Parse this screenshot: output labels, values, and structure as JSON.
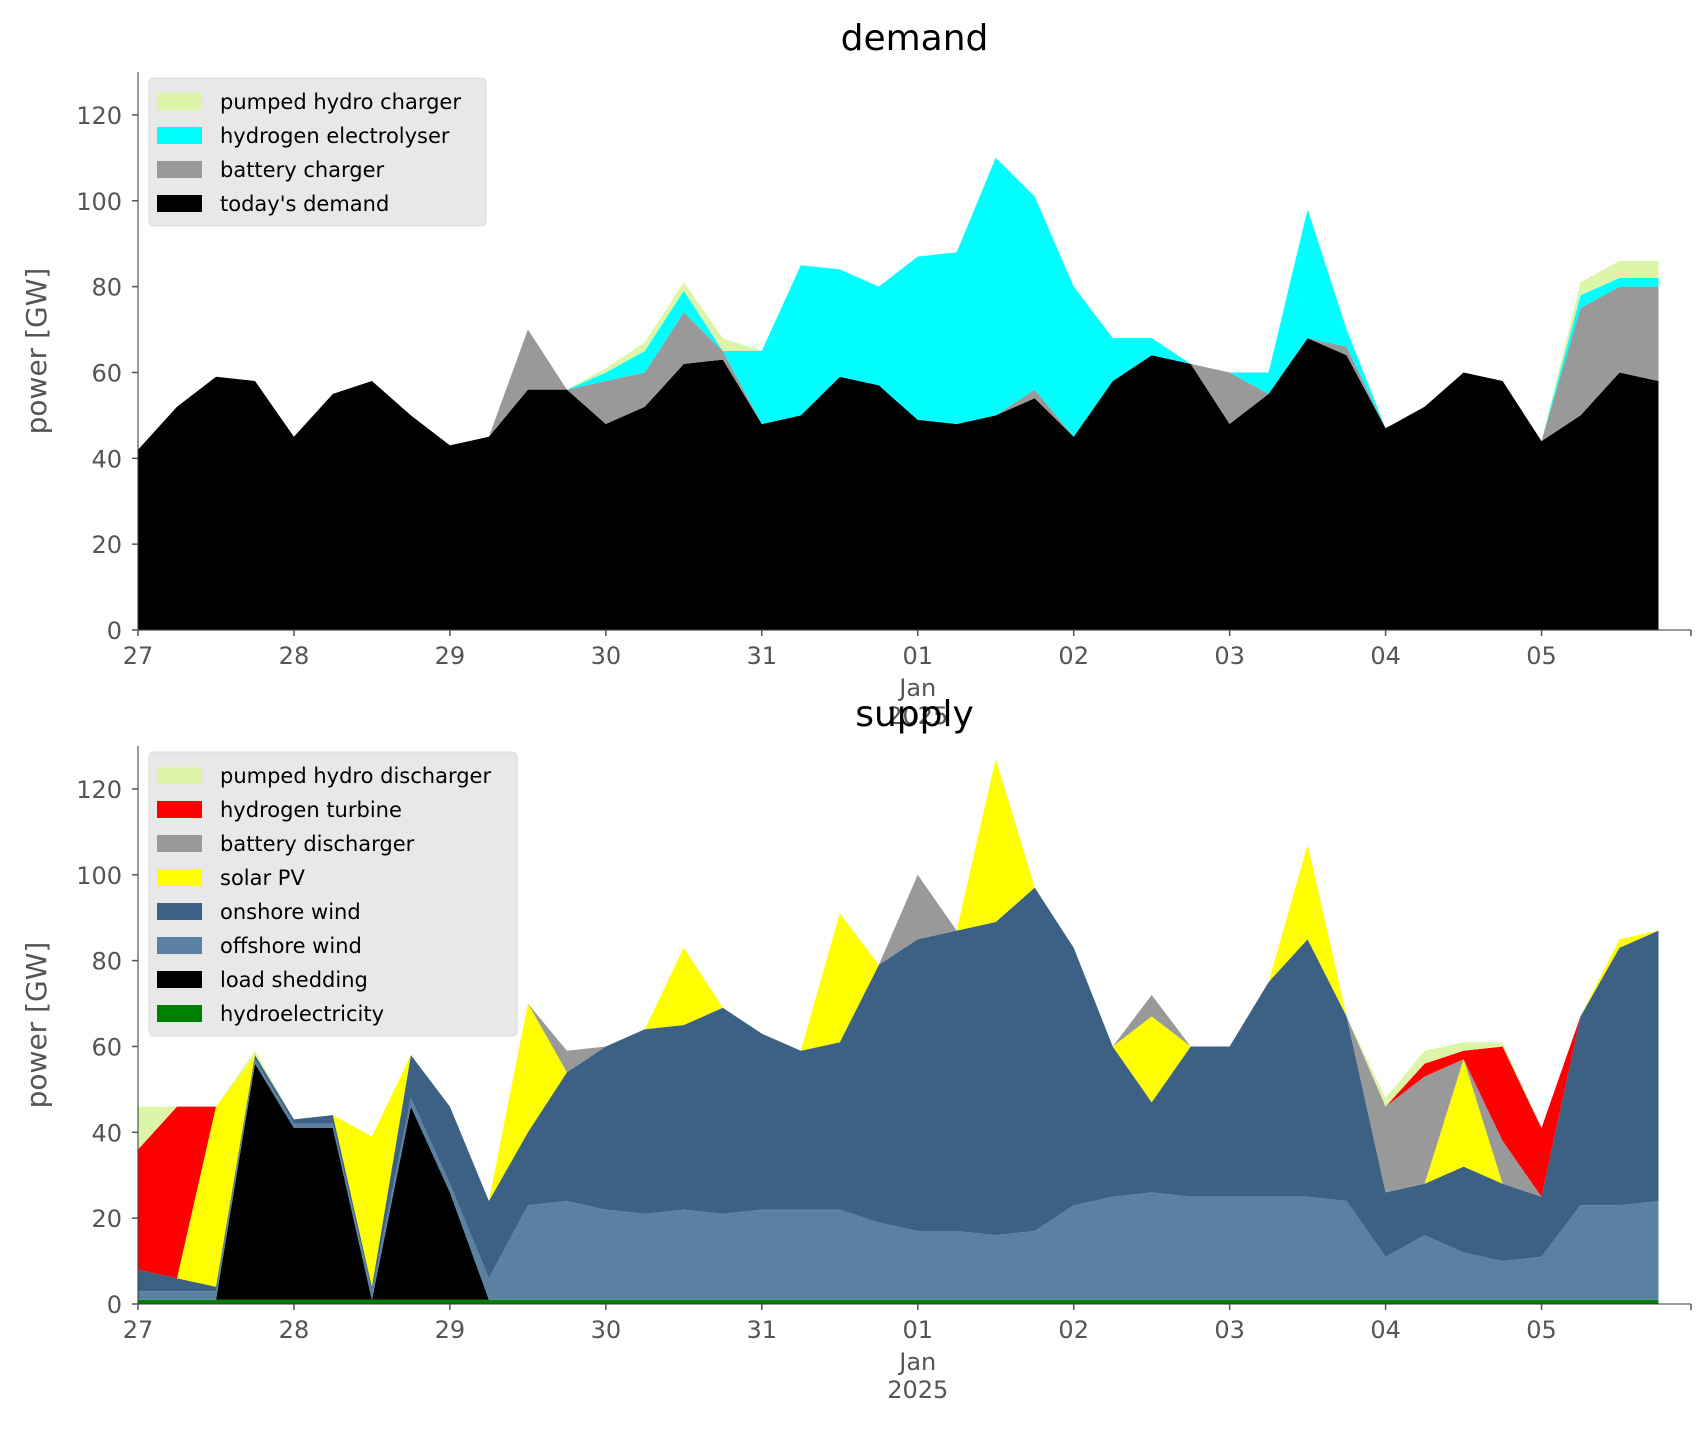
{
  "chart_data": [
    {
      "type": "area",
      "stacked": true,
      "title": "demand",
      "xlabel": "",
      "ylabel": "power [GW]",
      "ylim": [
        0,
        130
      ],
      "xlim": [
        "2024-12-27T00:00",
        "2025-01-05T23:00"
      ],
      "yticks": [
        "0",
        "20",
        "40",
        "60",
        "80",
        "100",
        "120"
      ],
      "xticks": [
        {
          "date": "2024-12-27",
          "label": "27"
        },
        {
          "date": "2024-12-28",
          "label": "28"
        },
        {
          "date": "2024-12-29",
          "label": "29"
        },
        {
          "date": "2024-12-30",
          "label": "30"
        },
        {
          "date": "2024-12-31",
          "label": "31"
        },
        {
          "date": "2025-01-01",
          "label": "01",
          "sublabel": "Jan",
          "sublabel2": "2025"
        },
        {
          "date": "2025-01-02",
          "label": "02"
        },
        {
          "date": "2025-01-03",
          "label": "03"
        },
        {
          "date": "2025-01-04",
          "label": "04"
        },
        {
          "date": "2025-01-05",
          "label": "05"
        }
      ],
      "grid": false,
      "legend_position": "upper-left",
      "x": [
        "2024-12-27T00:00",
        "2024-12-27T06:00",
        "2024-12-27T12:00",
        "2024-12-27T18:00",
        "2024-12-28T00:00",
        "2024-12-28T06:00",
        "2024-12-28T12:00",
        "2024-12-28T18:00",
        "2024-12-29T00:00",
        "2024-12-29T06:00",
        "2024-12-29T12:00",
        "2024-12-29T18:00",
        "2024-12-30T00:00",
        "2024-12-30T06:00",
        "2024-12-30T12:00",
        "2024-12-30T18:00",
        "2024-12-31T00:00",
        "2024-12-31T06:00",
        "2024-12-31T12:00",
        "2024-12-31T18:00",
        "2025-01-01T00:00",
        "2025-01-01T06:00",
        "2025-01-01T12:00",
        "2025-01-01T18:00",
        "2025-01-02T00:00",
        "2025-01-02T06:00",
        "2025-01-02T12:00",
        "2025-01-02T18:00",
        "2025-01-03T00:00",
        "2025-01-03T06:00",
        "2025-01-03T12:00",
        "2025-01-03T18:00",
        "2025-01-04T00:00",
        "2025-01-04T06:00",
        "2025-01-04T12:00",
        "2025-01-04T18:00",
        "2025-01-05T00:00",
        "2025-01-05T06:00",
        "2025-01-05T12:00",
        "2025-01-05T18:00"
      ],
      "series": [
        {
          "name": "today's demand",
          "color": "#000000",
          "values": [
            42,
            52,
            59,
            58,
            45,
            55,
            58,
            50,
            43,
            45,
            56,
            56,
            48,
            52,
            62,
            63,
            48,
            50,
            59,
            57,
            49,
            48,
            50,
            54,
            45,
            58,
            64,
            62,
            48,
            55,
            68,
            64,
            47,
            52,
            60,
            58,
            44,
            50,
            60,
            58
          ]
        },
        {
          "name": "battery charger",
          "color": "#999999",
          "values": [
            0,
            0,
            0,
            0,
            0,
            0,
            0,
            0,
            0,
            0,
            14,
            0,
            10,
            8,
            12,
            2,
            0,
            0,
            0,
            0,
            0,
            0,
            0,
            2,
            0,
            0,
            0,
            0,
            12,
            0,
            0,
            2,
            0,
            0,
            0,
            0,
            0,
            25,
            20,
            22
          ]
        },
        {
          "name": "hydrogen electrolyser",
          "color": "#00ffff",
          "values": [
            0,
            0,
            0,
            0,
            0,
            0,
            0,
            0,
            0,
            0,
            0,
            0,
            2,
            5,
            5,
            0,
            17,
            35,
            25,
            23,
            38,
            40,
            60,
            45,
            35,
            10,
            4,
            0,
            0,
            5,
            30,
            4,
            0,
            0,
            0,
            0,
            0,
            3,
            2,
            2
          ]
        },
        {
          "name": "pumped hydro charger",
          "color": "#dcf5a8",
          "values": [
            0,
            0,
            0,
            0,
            0,
            0,
            0,
            0,
            0,
            0,
            0,
            0,
            1,
            2,
            2,
            3,
            0,
            0,
            0,
            0,
            0,
            0,
            0,
            0,
            0,
            0,
            0,
            0,
            0,
            0,
            0,
            0,
            0,
            0,
            0,
            0,
            0,
            3,
            4,
            4
          ]
        }
      ],
      "legend_order": [
        "pumped hydro charger",
        "hydrogen electrolyser",
        "battery charger",
        "today's demand"
      ]
    },
    {
      "type": "area",
      "stacked": true,
      "title": "supply",
      "xlabel": "",
      "ylabel": "power [GW]",
      "ylim": [
        0,
        130
      ],
      "xlim": [
        "2024-12-27T00:00",
        "2025-01-05T23:00"
      ],
      "yticks": [
        "0",
        "20",
        "40",
        "60",
        "80",
        "100",
        "120"
      ],
      "xticks": [
        {
          "date": "2024-12-27",
          "label": "27"
        },
        {
          "date": "2024-12-28",
          "label": "28"
        },
        {
          "date": "2024-12-29",
          "label": "29"
        },
        {
          "date": "2024-12-30",
          "label": "30"
        },
        {
          "date": "2024-12-31",
          "label": "31"
        },
        {
          "date": "2025-01-01",
          "label": "01",
          "sublabel": "Jan",
          "sublabel2": "2025"
        },
        {
          "date": "2025-01-02",
          "label": "02"
        },
        {
          "date": "2025-01-03",
          "label": "03"
        },
        {
          "date": "2025-01-04",
          "label": "04"
        },
        {
          "date": "2025-01-05",
          "label": "05"
        }
      ],
      "grid": false,
      "legend_position": "upper-left",
      "x": [
        "2024-12-27T00:00",
        "2024-12-27T06:00",
        "2024-12-27T12:00",
        "2024-12-27T18:00",
        "2024-12-28T00:00",
        "2024-12-28T06:00",
        "2024-12-28T12:00",
        "2024-12-28T18:00",
        "2024-12-29T00:00",
        "2024-12-29T06:00",
        "2024-12-29T12:00",
        "2024-12-29T18:00",
        "2024-12-30T00:00",
        "2024-12-30T06:00",
        "2024-12-30T12:00",
        "2024-12-30T18:00",
        "2024-12-31T00:00",
        "2024-12-31T06:00",
        "2024-12-31T12:00",
        "2024-12-31T18:00",
        "2025-01-01T00:00",
        "2025-01-01T06:00",
        "2025-01-01T12:00",
        "2025-01-01T18:00",
        "2025-01-02T00:00",
        "2025-01-02T06:00",
        "2025-01-02T12:00",
        "2025-01-02T18:00",
        "2025-01-03T00:00",
        "2025-01-03T06:00",
        "2025-01-03T12:00",
        "2025-01-03T18:00",
        "2025-01-04T00:00",
        "2025-01-04T06:00",
        "2025-01-04T12:00",
        "2025-01-04T18:00",
        "2025-01-05T00:00",
        "2025-01-05T06:00",
        "2025-01-05T12:00",
        "2025-01-05T18:00"
      ],
      "series": [
        {
          "name": "hydroelectricity",
          "color": "#008000",
          "values": [
            1,
            1,
            1,
            1,
            1,
            1,
            1,
            1,
            1,
            1,
            1,
            1,
            1,
            1,
            1,
            1,
            1,
            1,
            1,
            1,
            1,
            1,
            1,
            1,
            1,
            1,
            1,
            1,
            1,
            1,
            1,
            1,
            1,
            1,
            1,
            1,
            1,
            1,
            1,
            1
          ]
        },
        {
          "name": "load shedding",
          "color": "#000000",
          "values": [
            0,
            0,
            0,
            55,
            40,
            40,
            0,
            45,
            25,
            0,
            0,
            0,
            0,
            0,
            0,
            0,
            0,
            0,
            0,
            0,
            0,
            0,
            0,
            0,
            0,
            0,
            0,
            0,
            0,
            0,
            0,
            0,
            0,
            0,
            0,
            0,
            0,
            0,
            0,
            0
          ]
        },
        {
          "name": "offshore wind",
          "color": "#5b81a2",
          "values": [
            2,
            2,
            2,
            1,
            1,
            1,
            2,
            2,
            2,
            5,
            22,
            23,
            21,
            20,
            21,
            20,
            21,
            21,
            21,
            18,
            16,
            16,
            15,
            16,
            22,
            24,
            25,
            24,
            24,
            24,
            24,
            23,
            10,
            15,
            11,
            9,
            10,
            22,
            22,
            23
          ]
        },
        {
          "name": "onshore wind",
          "color": "#3c6184",
          "values": [
            5,
            3,
            1,
            1,
            1,
            2,
            1,
            10,
            18,
            18,
            17,
            30,
            38,
            43,
            43,
            48,
            41,
            37,
            39,
            60,
            68,
            70,
            73,
            80,
            60,
            35,
            21,
            35,
            35,
            50,
            60,
            43,
            15,
            12,
            20,
            18,
            14,
            44,
            60,
            63
          ]
        },
        {
          "name": "solar PV",
          "color": "#ffff00",
          "values": [
            0,
            0,
            42,
            0,
            0,
            0,
            35,
            0,
            0,
            0,
            30,
            0,
            0,
            0,
            18,
            0,
            0,
            0,
            30,
            0,
            0,
            0,
            38,
            0,
            0,
            0,
            20,
            0,
            0,
            0,
            22,
            0,
            0,
            0,
            25,
            0,
            0,
            0,
            2,
            0
          ]
        },
        {
          "name": "battery discharger",
          "color": "#999999",
          "values": [
            0,
            0,
            0,
            0,
            0,
            0,
            0,
            0,
            0,
            0,
            0,
            5,
            0,
            0,
            0,
            0,
            0,
            0,
            0,
            0,
            15,
            0,
            0,
            0,
            0,
            0,
            5,
            0,
            0,
            0,
            0,
            0,
            20,
            25,
            0,
            10,
            0,
            0,
            0,
            0
          ]
        },
        {
          "name": "hydrogen turbine",
          "color": "#ff0000",
          "values": [
            28,
            40,
            0,
            0,
            0,
            0,
            0,
            0,
            0,
            0,
            0,
            0,
            0,
            0,
            0,
            0,
            0,
            0,
            0,
            0,
            0,
            0,
            0,
            0,
            0,
            0,
            0,
            0,
            0,
            0,
            0,
            0,
            0,
            3,
            2,
            22,
            16,
            0,
            0,
            0
          ]
        },
        {
          "name": "pumped hydro discharger",
          "color": "#dcf5a8",
          "values": [
            10,
            0,
            0,
            1,
            0,
            0,
            0,
            0,
            0,
            0,
            0,
            0,
            0,
            0,
            0,
            0,
            0,
            0,
            0,
            0,
            0,
            0,
            0,
            0,
            0,
            0,
            0,
            0,
            0,
            0,
            0,
            0,
            2,
            3,
            2,
            1,
            0,
            0,
            0,
            0
          ]
        }
      ],
      "legend_order": [
        "pumped hydro discharger",
        "hydrogen turbine",
        "battery discharger",
        "solar PV",
        "onshore wind",
        "offshore wind",
        "load shedding",
        "hydroelectricity"
      ]
    }
  ]
}
